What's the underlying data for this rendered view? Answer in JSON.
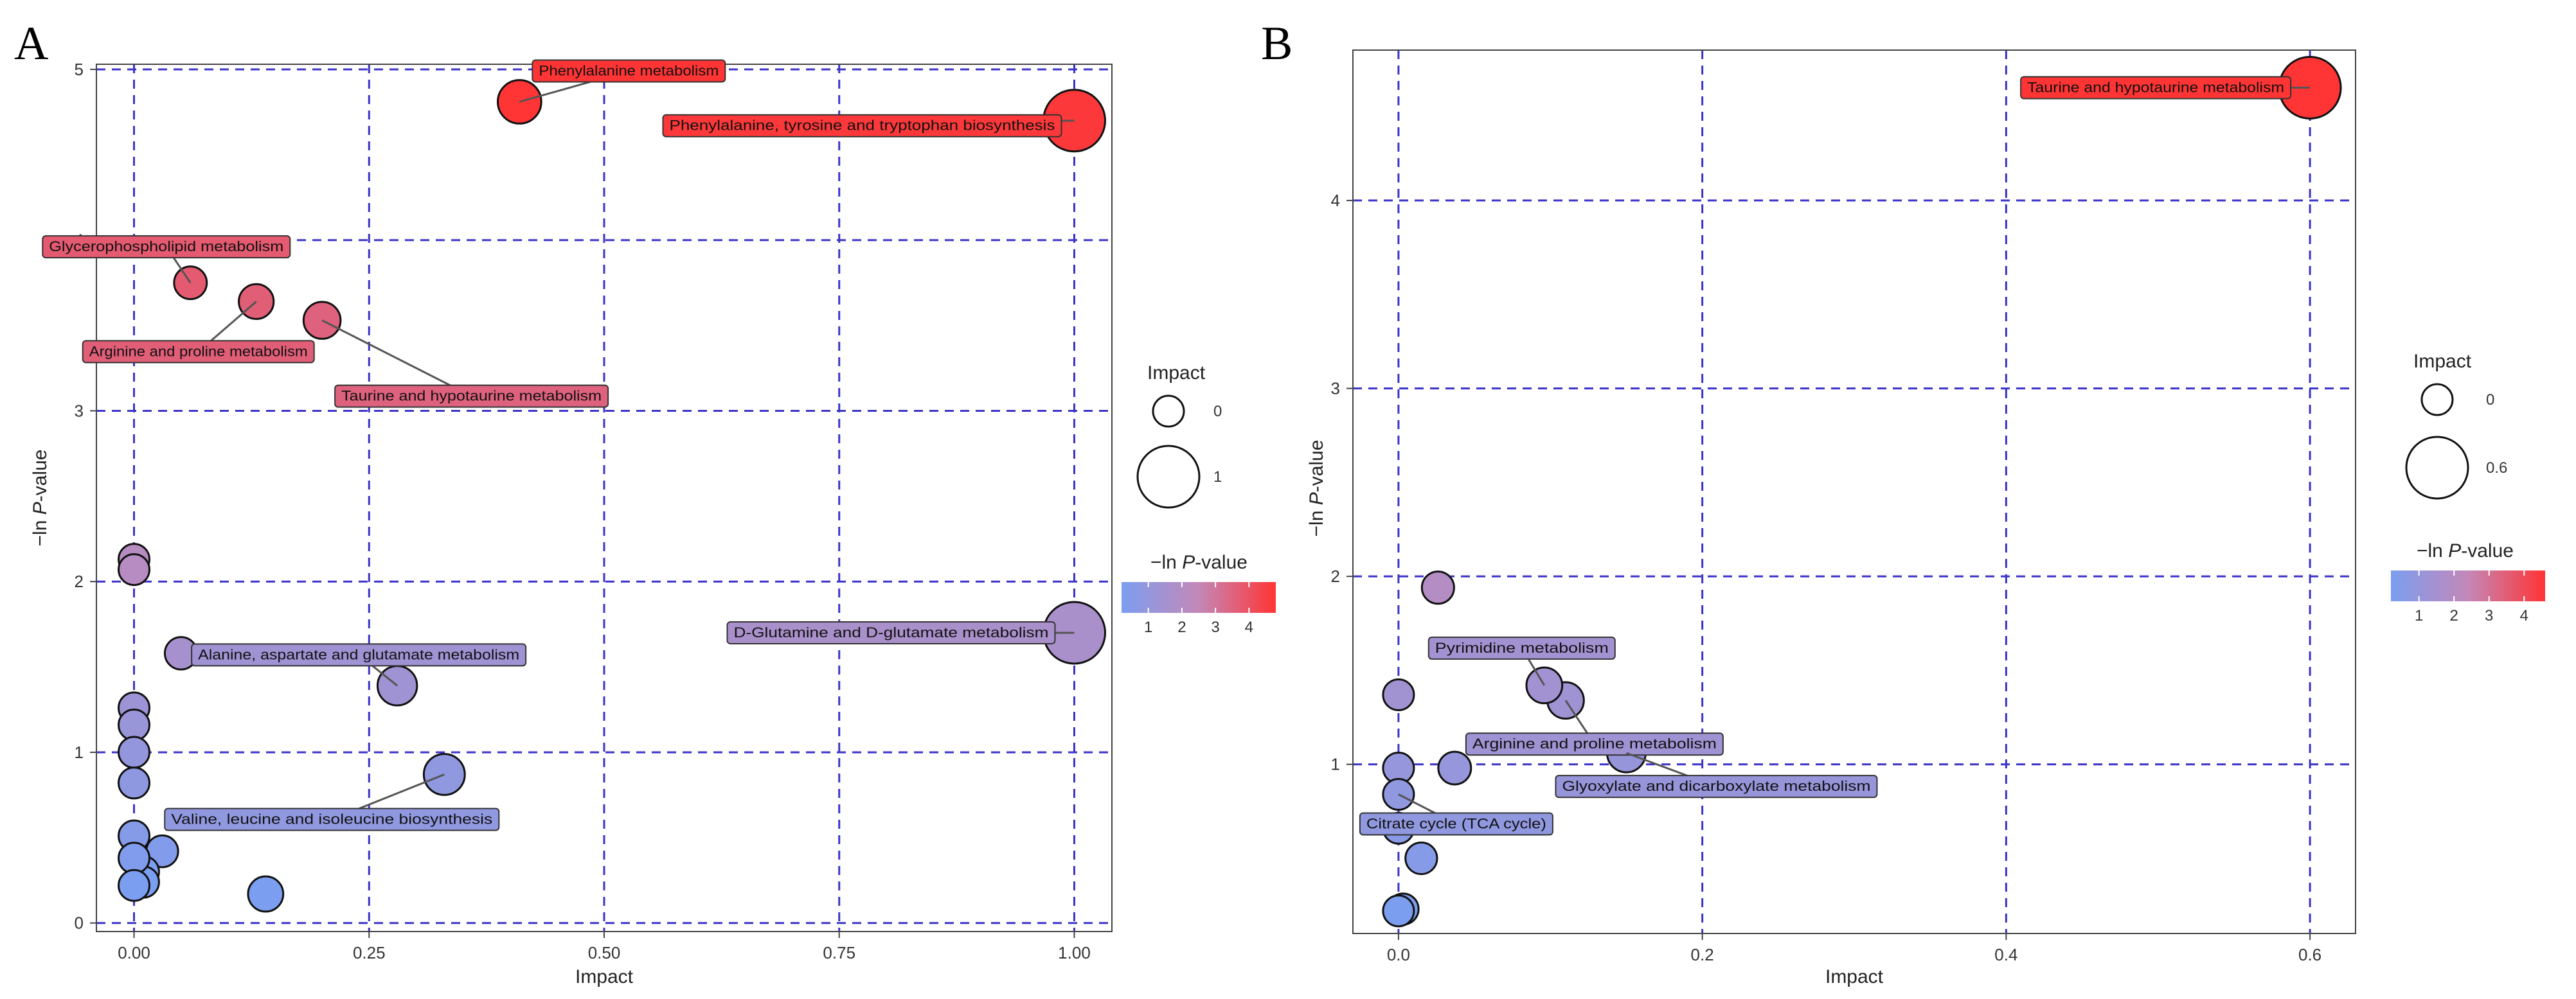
{
  "chart_data": [
    {
      "panel": "A",
      "type": "scatter",
      "xlabel": "Impact",
      "ylabel_prefix": "−ln ",
      "ylabel_italic": "P",
      "ylabel_suffix": "-value",
      "xlim": [
        -0.04,
        1.04
      ],
      "ylim": [
        -0.05,
        5.03
      ],
      "xticks": [
        0,
        0.25,
        0.5,
        0.75,
        1.0
      ],
      "xtick_labels": [
        "0.00",
        "0.25",
        "0.50",
        "0.75",
        "1.00"
      ],
      "yticks": [
        0,
        1,
        2,
        3,
        4,
        5
      ],
      "ytick_labels": [
        "0",
        "1",
        "2",
        "3",
        "4",
        "5"
      ],
      "grid": true,
      "size_legend": {
        "title": "Impact",
        "items": [
          {
            "value": 0,
            "label": "0"
          },
          {
            "value": 1,
            "label": "1"
          }
        ]
      },
      "color_legend": {
        "title_prefix": "−ln ",
        "title_italic": "P",
        "title_suffix": "-value",
        "ticks": [
          1,
          2,
          3,
          4
        ],
        "tick_labels": [
          "1",
          "2",
          "3",
          "4"
        ],
        "range": [
          0.2,
          4.8
        ],
        "low_color": "#7b9ef0",
        "mid_color": "#c388b8",
        "high_color": "#ff3434"
      },
      "points": [
        {
          "x": 0.41,
          "y": 4.81,
          "label": "Phenylalanine metabolism"
        },
        {
          "x": 1.0,
          "y": 4.7,
          "label": "Phenylalanine, tyrosine and tryptophan biosynthesis"
        },
        {
          "x": 0.06,
          "y": 3.75,
          "label": "Glycerophospholipid metabolism"
        },
        {
          "x": 0.13,
          "y": 3.64,
          "label": "Arginine and proline metabolism"
        },
        {
          "x": 0.2,
          "y": 3.53,
          "label": "Taurine and hypotaurine metabolism"
        },
        {
          "x": 0.0,
          "y": 2.13,
          "label": ""
        },
        {
          "x": 0.0,
          "y": 2.07,
          "label": ""
        },
        {
          "x": 1.0,
          "y": 1.7,
          "label": "D-Glutamine and D-glutamate metabolism"
        },
        {
          "x": 0.05,
          "y": 1.58,
          "label": ""
        },
        {
          "x": 0.28,
          "y": 1.39,
          "label": "Alanine, aspartate and glutamate metabolism"
        },
        {
          "x": 0.0,
          "y": 1.26,
          "label": ""
        },
        {
          "x": 0.0,
          "y": 1.16,
          "label": ""
        },
        {
          "x": 0.0,
          "y": 1.0,
          "label": ""
        },
        {
          "x": 0.0,
          "y": 0.82,
          "label": ""
        },
        {
          "x": 0.33,
          "y": 0.87,
          "label": "Valine, leucine and isoleucine biosynthesis"
        },
        {
          "x": 0.0,
          "y": 0.51,
          "label": ""
        },
        {
          "x": 0.03,
          "y": 0.42,
          "label": ""
        },
        {
          "x": 0.0,
          "y": 0.38,
          "label": ""
        },
        {
          "x": 0.01,
          "y": 0.3,
          "label": ""
        },
        {
          "x": 0.01,
          "y": 0.24,
          "label": ""
        },
        {
          "x": 0.0,
          "y": 0.22,
          "label": ""
        },
        {
          "x": 0.14,
          "y": 0.17,
          "label": ""
        }
      ]
    },
    {
      "panel": "B",
      "type": "scatter",
      "xlabel": "Impact",
      "ylabel_prefix": "−ln ",
      "ylabel_italic": "P",
      "ylabel_suffix": "-value",
      "xlim": [
        -0.03,
        0.63
      ],
      "ylim": [
        0.1,
        4.8
      ],
      "xticks": [
        0,
        0.2,
        0.4,
        0.6
      ],
      "xtick_labels": [
        "0.0",
        "0.2",
        "0.4",
        "0.6"
      ],
      "yticks": [
        1,
        2,
        3,
        4
      ],
      "ytick_labels": [
        "1",
        "2",
        "3",
        "4"
      ],
      "grid": true,
      "size_legend": {
        "title": "Impact",
        "items": [
          {
            "value": 0,
            "label": "0"
          },
          {
            "value": 0.6,
            "label": "0.6"
          }
        ]
      },
      "color_legend": {
        "title_prefix": "−ln ",
        "title_italic": "P",
        "title_suffix": "-value",
        "ticks": [
          1,
          2,
          3,
          4
        ],
        "tick_labels": [
          "1",
          "2",
          "3",
          "4"
        ],
        "range": [
          0.2,
          4.6
        ],
        "low_color": "#7b9ef0",
        "mid_color": "#c388b8",
        "high_color": "#ff3434"
      },
      "points": [
        {
          "x": 0.6,
          "y": 4.6,
          "label": "Taurine and hypotaurine metabolism"
        },
        {
          "x": 0.026,
          "y": 1.94,
          "label": ""
        },
        {
          "x": 0.0,
          "y": 1.37,
          "label": ""
        },
        {
          "x": 0.096,
          "y": 1.42,
          "label": "Pyrimidine metabolism"
        },
        {
          "x": 0.11,
          "y": 1.34,
          "label": "Arginine and proline metabolism"
        },
        {
          "x": 0.15,
          "y": 1.06,
          "label": "Glyoxylate and dicarboxylate metabolism"
        },
        {
          "x": 0.037,
          "y": 0.98,
          "label": ""
        },
        {
          "x": 0.0,
          "y": 0.98,
          "label": ""
        },
        {
          "x": 0.0,
          "y": 0.84,
          "label": "Citrate cycle (TCA cycle)"
        },
        {
          "x": 0.0,
          "y": 0.66,
          "label": ""
        },
        {
          "x": 0.015,
          "y": 0.5,
          "label": ""
        },
        {
          "x": 0.003,
          "y": 0.23,
          "label": ""
        },
        {
          "x": 0.0,
          "y": 0.22,
          "label": ""
        }
      ]
    }
  ]
}
